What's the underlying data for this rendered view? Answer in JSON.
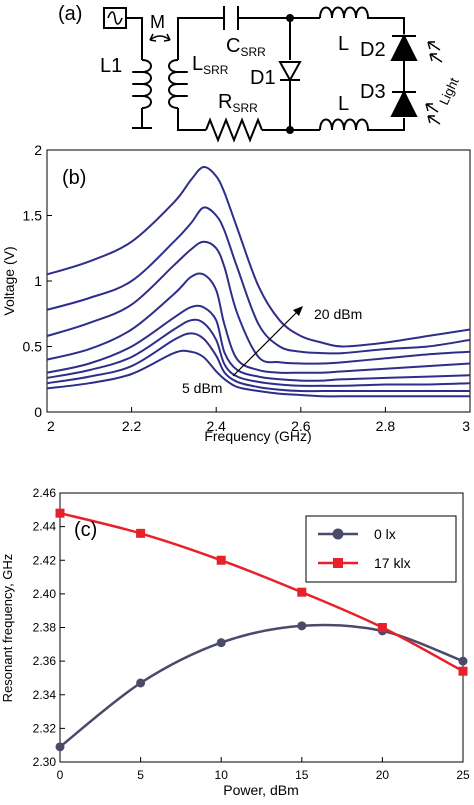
{
  "circuit": {
    "panel_label": "(a)",
    "labels": {
      "m": "M",
      "l1": "L1",
      "l_srr_main": "L",
      "l_srr_sub": "SRR",
      "c_srr_main": "C",
      "c_srr_sub": "SRR",
      "r_srr_main": "R",
      "r_srr_sub": "SRR",
      "d1": "D1",
      "l_top": "L",
      "l_bottom": "L",
      "d2": "D2",
      "d3": "D3",
      "light": "Light"
    }
  },
  "chart_data": [
    {
      "type": "line",
      "panel_label": "(b)",
      "xlabel": "Frequency (GHz)",
      "ylabel": "Voltage (V)",
      "xlim": [
        2,
        3
      ],
      "ylim": [
        0,
        2
      ],
      "xticks": [
        "2",
        "2.2",
        "2.4",
        "2.6",
        "2.8",
        "3"
      ],
      "yticks": [
        "0",
        "0.5",
        "1",
        "1.5",
        "2"
      ],
      "line_color": "#2e2e8a",
      "annotations": {
        "start": "5 dBm",
        "end": "20 dBm"
      },
      "x": [
        2.0,
        2.1,
        2.2,
        2.3,
        2.34,
        2.37,
        2.4,
        2.42,
        2.45,
        2.5,
        2.55,
        2.6,
        2.65,
        2.7,
        2.8,
        2.9,
        3.0
      ],
      "series": [
        {
          "values": [
            0.18,
            0.22,
            0.29,
            0.45,
            0.46,
            0.42,
            0.31,
            0.25,
            0.19,
            0.16,
            0.14,
            0.13,
            0.12,
            0.12,
            0.12,
            0.12,
            0.12
          ]
        },
        {
          "values": [
            0.22,
            0.27,
            0.35,
            0.55,
            0.6,
            0.56,
            0.43,
            0.3,
            0.23,
            0.19,
            0.17,
            0.16,
            0.16,
            0.16,
            0.16,
            0.16,
            0.16
          ]
        },
        {
          "values": [
            0.26,
            0.32,
            0.42,
            0.63,
            0.7,
            0.68,
            0.55,
            0.36,
            0.27,
            0.23,
            0.21,
            0.2,
            0.2,
            0.2,
            0.21,
            0.21,
            0.22
          ]
        },
        {
          "values": [
            0.3,
            0.37,
            0.5,
            0.72,
            0.8,
            0.8,
            0.7,
            0.45,
            0.32,
            0.27,
            0.25,
            0.24,
            0.24,
            0.25,
            0.26,
            0.27,
            0.28
          ]
        },
        {
          "values": [
            0.4,
            0.48,
            0.63,
            0.9,
            1.03,
            1.05,
            0.93,
            0.66,
            0.4,
            0.32,
            0.3,
            0.3,
            0.3,
            0.31,
            0.33,
            0.35,
            0.37
          ]
        },
        {
          "values": [
            0.58,
            0.68,
            0.82,
            1.12,
            1.24,
            1.3,
            1.25,
            1.1,
            0.75,
            0.42,
            0.38,
            0.37,
            0.37,
            0.38,
            0.41,
            0.44,
            0.46
          ]
        },
        {
          "values": [
            0.78,
            0.87,
            1.0,
            1.3,
            1.44,
            1.56,
            1.5,
            1.38,
            1.1,
            0.67,
            0.5,
            0.46,
            0.45,
            0.45,
            0.48,
            0.5,
            0.55
          ]
        },
        {
          "values": [
            1.05,
            1.15,
            1.3,
            1.6,
            1.77,
            1.87,
            1.8,
            1.67,
            1.4,
            0.96,
            0.7,
            0.58,
            0.53,
            0.5,
            0.53,
            0.58,
            0.63
          ]
        }
      ]
    },
    {
      "type": "line",
      "panel_label": "(c)",
      "xlabel": "Power, dBm",
      "ylabel": "Resonant frequency, GHz",
      "xlim": [
        0,
        25
      ],
      "ylim": [
        2.3,
        2.46
      ],
      "xticks": [
        "0",
        "5",
        "10",
        "15",
        "20",
        "25"
      ],
      "yticks": [
        "2.30",
        "2.32",
        "2.34",
        "2.36",
        "2.38",
        "2.40",
        "2.42",
        "2.44",
        "2.46"
      ],
      "legend_position": "top-right",
      "x": [
        0,
        5,
        10,
        15,
        20,
        25
      ],
      "series": [
        {
          "name": "0 lx",
          "color": "#4a4a6a",
          "marker": "circle",
          "values": [
            2.309,
            2.347,
            2.371,
            2.381,
            2.378,
            2.36
          ]
        },
        {
          "name": "17 klx",
          "color": "#e8202a",
          "marker": "square",
          "values": [
            2.448,
            2.436,
            2.42,
            2.401,
            2.38,
            2.354
          ]
        }
      ]
    }
  ]
}
